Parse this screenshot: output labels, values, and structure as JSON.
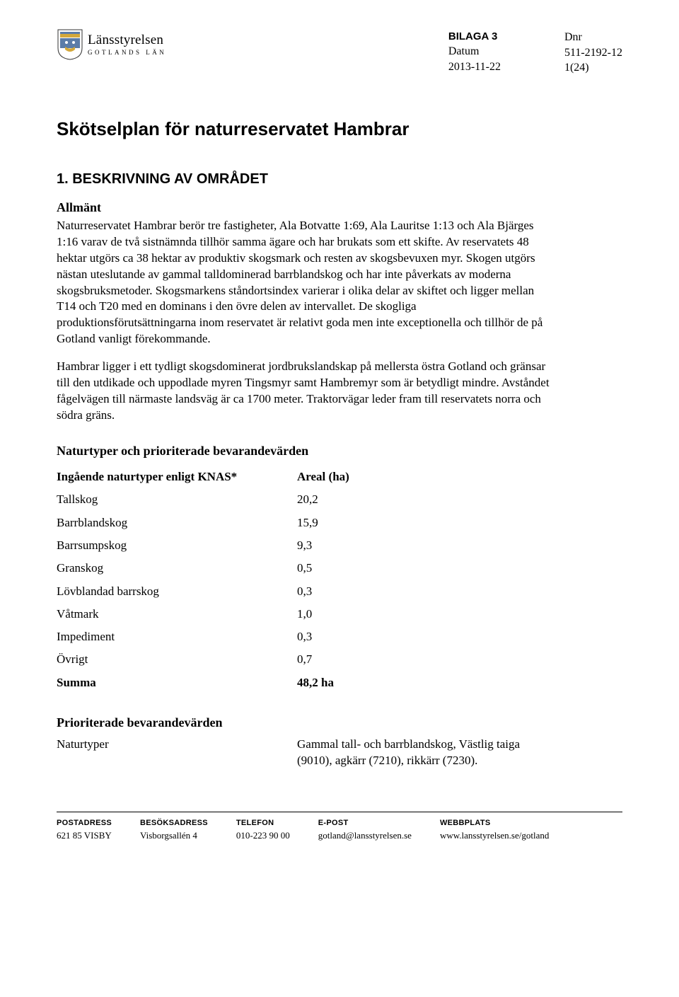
{
  "header": {
    "logo": {
      "main": "Länsstyrelsen",
      "sub": "GOTLANDS LÄN"
    },
    "left_col": {
      "label": "BILAGA 3",
      "line2": "Datum",
      "line3": "2013-11-22"
    },
    "right_col": {
      "line1": "Dnr",
      "line2": "511-2192-12",
      "line3": "1(24)"
    }
  },
  "title": "Skötselplan för naturreservatet Hambrar",
  "section1": {
    "heading": "1. BESKRIVNING AV OMRÅDET",
    "sub1": "Allmänt",
    "p1": "Naturreservatet Hambrar berör tre fastigheter, Ala Botvatte 1:69, Ala Lauritse 1:13 och Ala Bjärges 1:16 varav de två sistnämnda tillhör samma ägare och har brukats som ett skifte. Av reservatets 48 hektar utgörs ca 38 hektar av produktiv skogsmark och resten av skogsbevuxen myr. Skogen utgörs nästan uteslutande av gammal talldominerad barrblandskog och har inte påverkats av moderna skogsbruksmetoder. Skogsmarkens ståndortsindex varierar i olika delar av skiftet och ligger mellan T14 och T20 med en dominans i den övre delen av intervallet. De skogliga produktionsförutsättningarna inom reservatet är relativt goda men inte exceptionella och tillhör de på Gotland vanligt förekommande.",
    "p2": "Hambrar ligger i ett tydligt skogsdominerat jordbrukslandskap på mellersta östra Gotland och gränsar till den utdikade och uppodlade myren Tingsmyr samt Hambremyr som är betydligt mindre. Avståndet fågelvägen till närmaste landsväg är ca 1700 meter. Traktorvägar leder fram till reservatets norra och södra gräns."
  },
  "naturtyper": {
    "heading": "Naturtyper och prioriterade bevarandevärden",
    "col1": "Ingående naturtyper enligt KNAS*",
    "col2": "Areal (ha)",
    "rows": [
      {
        "name": "Tallskog",
        "val": "20,2"
      },
      {
        "name": "Barrblandskog",
        "val": "15,9"
      },
      {
        "name": "Barrsumpskog",
        "val": "9,3"
      },
      {
        "name": "Granskog",
        "val": "0,5"
      },
      {
        "name": "Lövblandad barrskog",
        "val": "0,3"
      },
      {
        "name": "Våtmark",
        "val": "1,0"
      },
      {
        "name": "Impediment",
        "val": "0,3"
      },
      {
        "name": "Övrigt",
        "val": "0,7"
      }
    ],
    "sum_label": "Summa",
    "sum_val": "48,2 ha"
  },
  "priority": {
    "heading": "Prioriterade bevarandevärden",
    "label": "Naturtyper",
    "value": "Gammal tall- och barrblandskog, Västlig taiga (9010), agkärr (7210), rikkärr (7230)."
  },
  "footer": {
    "cols": [
      {
        "head": "POSTADRESS",
        "val": "621 85 VISBY"
      },
      {
        "head": "BESÖKSADRESS",
        "val": "Visborgsallén 4"
      },
      {
        "head": "TELEFON",
        "val": "010-223 90 00"
      },
      {
        "head": "E-POST",
        "val": "gotland@lansstyrelsen.se"
      },
      {
        "head": "WEBBPLATS",
        "val": "www.lansstyrelsen.se/gotland"
      }
    ]
  },
  "colors": {
    "text": "#000000",
    "background": "#ffffff",
    "crest_blue": "#5b7ca8",
    "crest_gold": "#d4a83a",
    "crest_border": "#333333"
  }
}
